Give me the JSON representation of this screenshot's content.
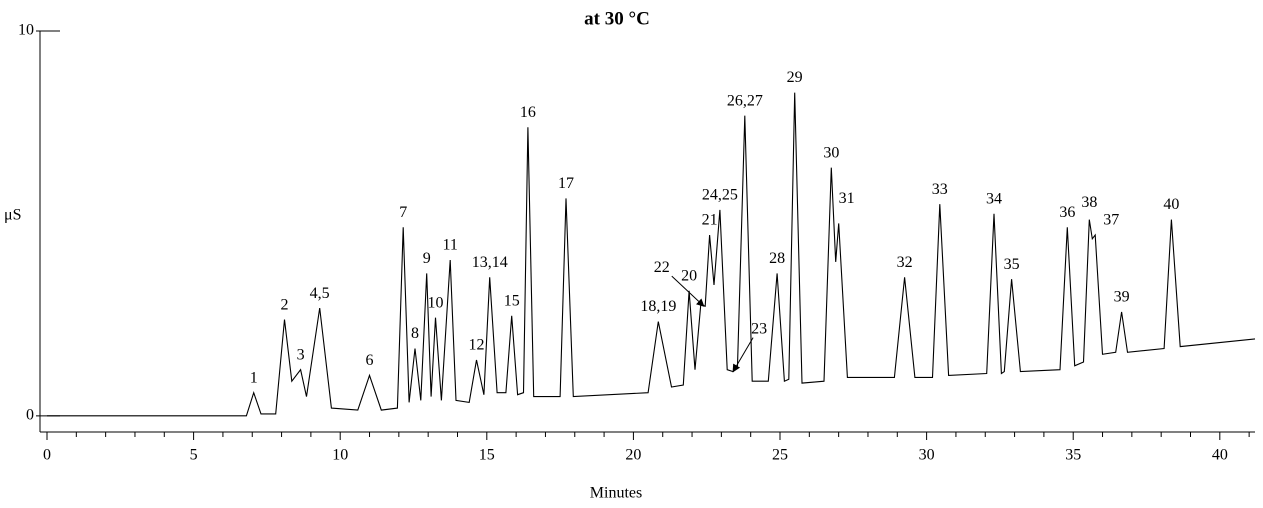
{
  "chart_data": {
    "type": "line",
    "title": "at 30 °C",
    "xlabel": "Minutes",
    "ylabel": "μS",
    "xlim": [
      0,
      41.2
    ],
    "ylim": [
      -0.42,
      10
    ],
    "xticks": [
      0,
      5,
      10,
      15,
      20,
      25,
      30,
      35,
      40
    ],
    "xminorticks": [
      1,
      2,
      3,
      4,
      6,
      7,
      8,
      9,
      11,
      12,
      13,
      14,
      16,
      17,
      18,
      19,
      21,
      22,
      23,
      24,
      26,
      27,
      28,
      29,
      31,
      32,
      33,
      34,
      36,
      37,
      38,
      39,
      41
    ],
    "yticks": [
      0,
      10
    ],
    "color": "#000000",
    "x": [
      0,
      6.8,
      7.05,
      7.3,
      7.8,
      8.1,
      8.35,
      8.65,
      8.85,
      9.3,
      9.7,
      10.6,
      11.0,
      11.4,
      11.95,
      12.15,
      12.35,
      12.55,
      12.75,
      12.95,
      13.1,
      13.25,
      13.45,
      13.75,
      13.95,
      14.4,
      14.65,
      14.9,
      15.1,
      15.35,
      15.65,
      15.85,
      16.05,
      16.25,
      16.4,
      16.6,
      17.5,
      17.7,
      17.95,
      20.5,
      20.85,
      21.3,
      21.7,
      21.9,
      22.1,
      22.3,
      22.45,
      22.6,
      22.75,
      22.95,
      23.2,
      23.4,
      23.55,
      23.8,
      24.05,
      24.6,
      24.9,
      25.15,
      25.3,
      25.5,
      25.75,
      26.5,
      26.75,
      26.9,
      27.0,
      27.3,
      28.9,
      29.25,
      29.6,
      30.2,
      30.45,
      30.75,
      32.05,
      32.3,
      32.55,
      32.65,
      32.9,
      33.2,
      34.55,
      34.8,
      35.05,
      35.35,
      35.55,
      35.65,
      35.75,
      36.0,
      36.45,
      36.65,
      36.85,
      38.1,
      38.35,
      38.65,
      41.2
    ],
    "values": [
      0,
      0,
      0.6,
      0.05,
      0.05,
      2.5,
      0.9,
      1.2,
      0.5,
      2.8,
      0.2,
      0.15,
      1.05,
      0.15,
      0.2,
      4.9,
      0.35,
      1.75,
      0.4,
      3.7,
      0.5,
      2.55,
      0.4,
      4.05,
      0.4,
      0.35,
      1.45,
      0.55,
      3.6,
      0.6,
      0.6,
      2.6,
      0.55,
      0.6,
      7.5,
      0.5,
      0.5,
      5.65,
      0.5,
      0.6,
      2.45,
      0.75,
      0.8,
      3.25,
      1.2,
      2.9,
      2.85,
      4.7,
      3.4,
      5.35,
      1.2,
      1.15,
      1.3,
      7.8,
      0.9,
      0.9,
      3.7,
      0.9,
      0.95,
      8.4,
      0.85,
      0.9,
      6.45,
      4.0,
      5.0,
      1.0,
      1.0,
      3.6,
      1.0,
      1.0,
      5.5,
      1.05,
      1.1,
      5.25,
      1.1,
      1.15,
      3.55,
      1.15,
      1.2,
      4.9,
      1.3,
      1.4,
      5.1,
      4.6,
      4.7,
      1.6,
      1.65,
      2.7,
      1.65,
      1.75,
      5.1,
      1.8,
      2.0
    ],
    "peaks": [
      {
        "label": "1",
        "x": 7.05,
        "y": 0.6
      },
      {
        "label": "2",
        "x": 8.1,
        "y": 2.5
      },
      {
        "label": "3",
        "x": 8.65,
        "y": 1.2
      },
      {
        "label": "4,5",
        "x": 9.3,
        "y": 2.8
      },
      {
        "label": "6",
        "x": 11.0,
        "y": 1.05
      },
      {
        "label": "7",
        "x": 12.15,
        "y": 4.9
      },
      {
        "label": "8",
        "x": 12.55,
        "y": 1.75
      },
      {
        "label": "9",
        "x": 12.95,
        "y": 3.7
      },
      {
        "label": "10",
        "x": 13.25,
        "y": 2.55
      },
      {
        "label": "11",
        "x": 13.75,
        "y": 4.05
      },
      {
        "label": "12",
        "x": 14.65,
        "y": 1.45
      },
      {
        "label": "13,14",
        "x": 15.1,
        "y": 3.6
      },
      {
        "label": "15",
        "x": 15.85,
        "y": 2.6
      },
      {
        "label": "16",
        "x": 16.4,
        "y": 7.5
      },
      {
        "label": "17",
        "x": 17.7,
        "y": 5.65
      },
      {
        "label": "18,19",
        "x": 20.85,
        "y": 2.45
      },
      {
        "label": "20",
        "x": 21.9,
        "y": 3.25
      },
      {
        "label": "21",
        "x": 22.6,
        "y": 4.7
      },
      {
        "label": "22",
        "x": 22.4,
        "y": 2.85
      },
      {
        "label": "23",
        "x": 23.4,
        "y": 1.15
      },
      {
        "label": "24,25",
        "x": 22.95,
        "y": 5.35
      },
      {
        "label": "26,27",
        "x": 23.8,
        "y": 7.8
      },
      {
        "label": "28",
        "x": 24.9,
        "y": 3.7
      },
      {
        "label": "29",
        "x": 25.5,
        "y": 8.4
      },
      {
        "label": "30",
        "x": 26.75,
        "y": 6.45
      },
      {
        "label": "31",
        "x": 27.0,
        "y": 5.0
      },
      {
        "label": "32",
        "x": 29.25,
        "y": 3.6
      },
      {
        "label": "33",
        "x": 30.45,
        "y": 5.5
      },
      {
        "label": "34",
        "x": 32.3,
        "y": 5.25
      },
      {
        "label": "35",
        "x": 32.9,
        "y": 3.55
      },
      {
        "label": "36",
        "x": 34.8,
        "y": 4.9
      },
      {
        "label": "38",
        "x": 35.55,
        "y": 5.1
      },
      {
        "label": "37",
        "x": 35.75,
        "y": 4.7
      },
      {
        "label": "39",
        "x": 36.65,
        "y": 2.7
      },
      {
        "label": "40",
        "x": 38.35,
        "y": 5.1
      }
    ]
  }
}
